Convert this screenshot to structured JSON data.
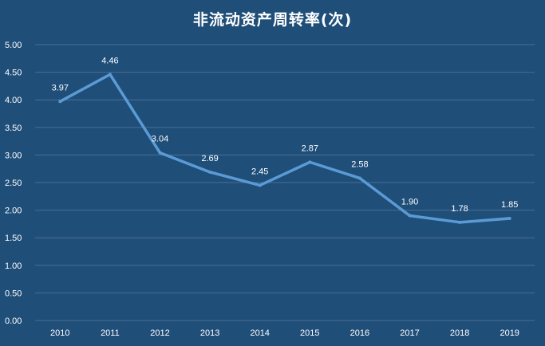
{
  "chart_data": {
    "type": "line",
    "title": "非流动资产周转率(次)",
    "xlabel": "",
    "ylabel": "",
    "categories": [
      "2010",
      "2011",
      "2012",
      "2013",
      "2014",
      "2015",
      "2016",
      "2017",
      "2018",
      "2019"
    ],
    "series": [
      {
        "values": [
          3.97,
          4.46,
          3.04,
          2.69,
          2.45,
          2.87,
          2.58,
          1.9,
          1.78,
          1.85
        ]
      }
    ],
    "data_labels": [
      "3.97",
      "4.46",
      "3.04",
      "2.69",
      "2.45",
      "2.87",
      "2.58",
      "1.90",
      "1.78",
      "1.85"
    ],
    "y_ticks": [
      "0.00",
      "0.50",
      "1.00",
      "1.50",
      "2.00",
      "2.50",
      "3.00",
      "3.50",
      "4.00",
      "4.50",
      "5.00"
    ],
    "ylim": [
      0,
      5
    ],
    "grid": true,
    "legend": "none",
    "colors": {
      "background": "#1f4e79",
      "line": "#5b9bd5",
      "grid": "#4a6f94",
      "text": "#ffffff"
    }
  }
}
